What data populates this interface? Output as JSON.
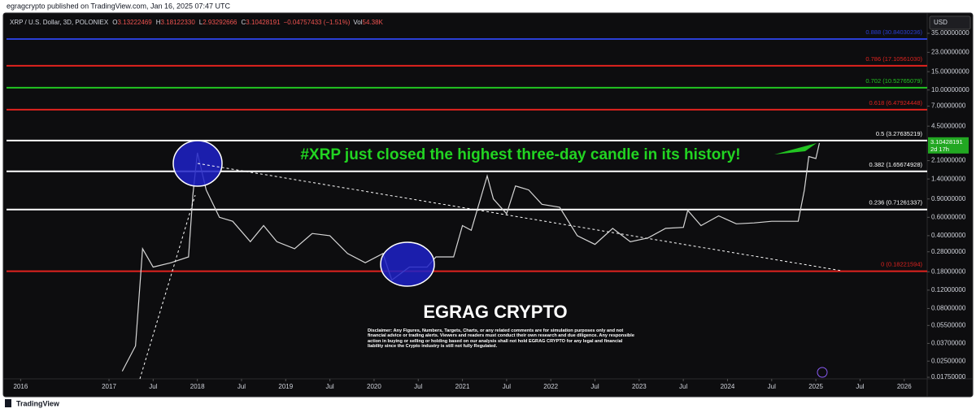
{
  "header": {
    "published": "egragcrypto published on TradingView.com, Jan 16, 2025 07:47 UTC",
    "symbol": "XRP / U.S. Dollar, 3D, POLONIEX",
    "ohlc": [
      {
        "key": "O",
        "value": "3.13222469"
      },
      {
        "key": "H",
        "value": "3.18122330"
      },
      {
        "key": "L",
        "value": "2.93292666"
      },
      {
        "key": "C",
        "value": "3.10428191"
      }
    ],
    "change": "−0.04757433 (−1.51%)",
    "volume_key": "Vol",
    "volume": "54.38K",
    "currency": "USD"
  },
  "footer": {
    "brand": "TradingView"
  },
  "chart_data": {
    "type": "line",
    "log_scale": true,
    "grid": false,
    "color": "#d6d6d6",
    "xlim": [
      2015.84,
      2026.26
    ],
    "ylim": [
      0.0169,
      44.2
    ],
    "xticks": [
      2016,
      2017,
      {
        "value": 2017.5,
        "label": "Jul"
      },
      2018,
      {
        "value": 2018.5,
        "label": "Jul"
      },
      2019,
      {
        "value": 2019.5,
        "label": "Jul"
      },
      2020,
      {
        "value": 2020.5,
        "label": "Jul"
      },
      2021,
      {
        "value": 2021.5,
        "label": "Jul"
      },
      2022,
      {
        "value": 2022.5,
        "label": "Jul"
      },
      2023,
      {
        "value": 2023.5,
        "label": "Jul"
      },
      2024,
      {
        "value": 2024.5,
        "label": "Jul"
      },
      2025,
      {
        "value": 2025.5,
        "label": "Jul"
      },
      2026
    ],
    "yticks": [
      {
        "value": 35,
        "label": "35.00000000"
      },
      {
        "value": 23,
        "label": "23.00000000"
      },
      {
        "value": 15,
        "label": "15.00000000"
      },
      {
        "value": 10,
        "label": "10.00000000"
      },
      {
        "value": 7,
        "label": "7.00000000"
      },
      {
        "value": 4.5,
        "label": "4.50000000"
      },
      {
        "value": 2.1,
        "label": "2.10000000"
      },
      {
        "value": 1.4,
        "label": "1.40000000"
      },
      {
        "value": 0.9,
        "label": "0.90000000"
      },
      {
        "value": 0.6,
        "label": "0.60000000"
      },
      {
        "value": 0.4,
        "label": "0.40000000"
      },
      {
        "value": 0.28,
        "label": "0.28000000"
      },
      {
        "value": 0.18,
        "label": "0.18000000"
      },
      {
        "value": 0.12,
        "label": "0.12000000"
      },
      {
        "value": 0.08,
        "label": "0.08000000"
      },
      {
        "value": 0.055,
        "label": "0.05500000"
      },
      {
        "value": 0.037,
        "label": "0.03700000"
      },
      {
        "value": 0.025,
        "label": "0.02500000"
      },
      {
        "value": 0.0175,
        "label": "0.01750000"
      }
    ],
    "x": [
      2017.15,
      2017.3,
      2017.38,
      2017.5,
      2017.7,
      2017.9,
      2017.95,
      2018.0,
      2018.1,
      2018.25,
      2018.4,
      2018.6,
      2018.75,
      2018.9,
      2019.1,
      2019.3,
      2019.5,
      2019.7,
      2019.9,
      2020.1,
      2020.2,
      2020.4,
      2020.6,
      2020.7,
      2020.9,
      2021.0,
      2021.1,
      2021.28,
      2021.35,
      2021.5,
      2021.6,
      2021.75,
      2021.9,
      2022.1,
      2022.3,
      2022.5,
      2022.7,
      2022.9,
      2023.1,
      2023.3,
      2023.5,
      2023.55,
      2023.7,
      2023.9,
      2024.1,
      2024.3,
      2024.5,
      2024.8,
      2024.87,
      2024.92,
      2025.0,
      2025.04
    ],
    "values": [
      0.02,
      0.035,
      0.3,
      0.2,
      0.22,
      0.25,
      1.0,
      2.5,
      1.1,
      0.6,
      0.55,
      0.35,
      0.5,
      0.35,
      0.3,
      0.42,
      0.4,
      0.27,
      0.22,
      0.27,
      0.15,
      0.2,
      0.2,
      0.25,
      0.25,
      0.5,
      0.45,
      1.5,
      0.9,
      0.65,
      1.2,
      1.1,
      0.8,
      0.75,
      0.4,
      0.33,
      0.47,
      0.35,
      0.38,
      0.47,
      0.48,
      0.7,
      0.5,
      0.62,
      0.52,
      0.53,
      0.55,
      0.55,
      1.1,
      2.3,
      2.2,
      3.1
    ],
    "current_price": 3.10428191,
    "countdown": "2d 17h",
    "fib_levels": [
      {
        "price": 30.84030236,
        "label": "0.888 (30.84030236)",
        "color": "#2a3fd6"
      },
      {
        "price": 17.1056103,
        "label": "0.786 (17.10561030)",
        "color": "#e0231f"
      },
      {
        "price": 10.52765079,
        "label": "0.702 (10.52765079)",
        "color": "#22c422"
      },
      {
        "price": 6.47924448,
        "label": "0.618 (6.47924448)",
        "color": "#e0231f"
      },
      {
        "price": 3.27635219,
        "label": "0.5 (3.27635219)",
        "color": "#ffffff"
      },
      {
        "price": 1.65674928,
        "label": "0.382 (1.65674928)",
        "color": "#ffffff"
      },
      {
        "price": 0.71261337,
        "label": "0.236 (0.71261337)",
        "color": "#ffffff"
      },
      {
        "price": 0.18221594,
        "label": "0 (0.18221594)",
        "color": "#e0231f"
      }
    ],
    "annotation": "#XRP just closed the highest three-day candle in its history!",
    "brand": "EGRAG CRYPTO",
    "disclaimer": "Disclaimer: Any Figures, Numbers, Targets, Charts, or any related comments are for simulation purposes only and not financial advice or trading alerts. Viewers and readers must conduct their own research and due diligence. Any responsible action in buying or selling or holding based on our analysis shall not hold EGRAG CRYPTO for any legal and financial liability since the Crypto industry is still not fully Regulated."
  }
}
